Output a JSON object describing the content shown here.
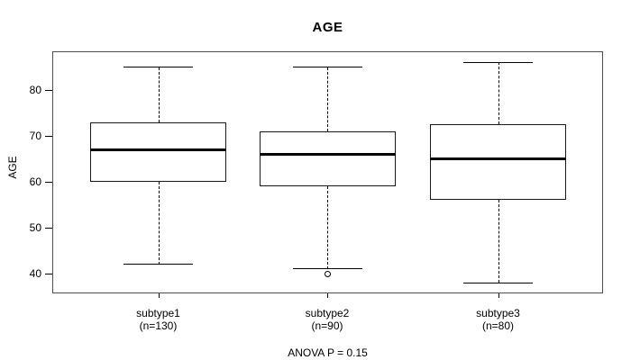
{
  "chart_data": {
    "type": "boxplot",
    "title": "AGE",
    "ylabel": "AGE",
    "xlabel": "",
    "annotation": "ANOVA P = 0.15",
    "yticks": [
      40,
      50,
      60,
      70,
      80
    ],
    "ylim": [
      36,
      88
    ],
    "grid": false,
    "line_color": "#000000",
    "background_color": "#ffffff",
    "groups": [
      {
        "label": "subtype1",
        "sublabel": "(n=130)",
        "n": 130,
        "whisker_low": 42,
        "q1": 60,
        "median": 67,
        "q3": 73,
        "whisker_high": 85,
        "outliers": []
      },
      {
        "label": "subtype2",
        "sublabel": "(n=90)",
        "n": 90,
        "whisker_low": 41,
        "q1": 59,
        "median": 66,
        "q3": 71,
        "whisker_high": 85,
        "outliers": [
          40
        ]
      },
      {
        "label": "subtype3",
        "sublabel": "(n=80)",
        "n": 80,
        "whisker_low": 38,
        "q1": 56,
        "median": 65,
        "q3": 72.5,
        "whisker_high": 86,
        "outliers": []
      }
    ]
  }
}
